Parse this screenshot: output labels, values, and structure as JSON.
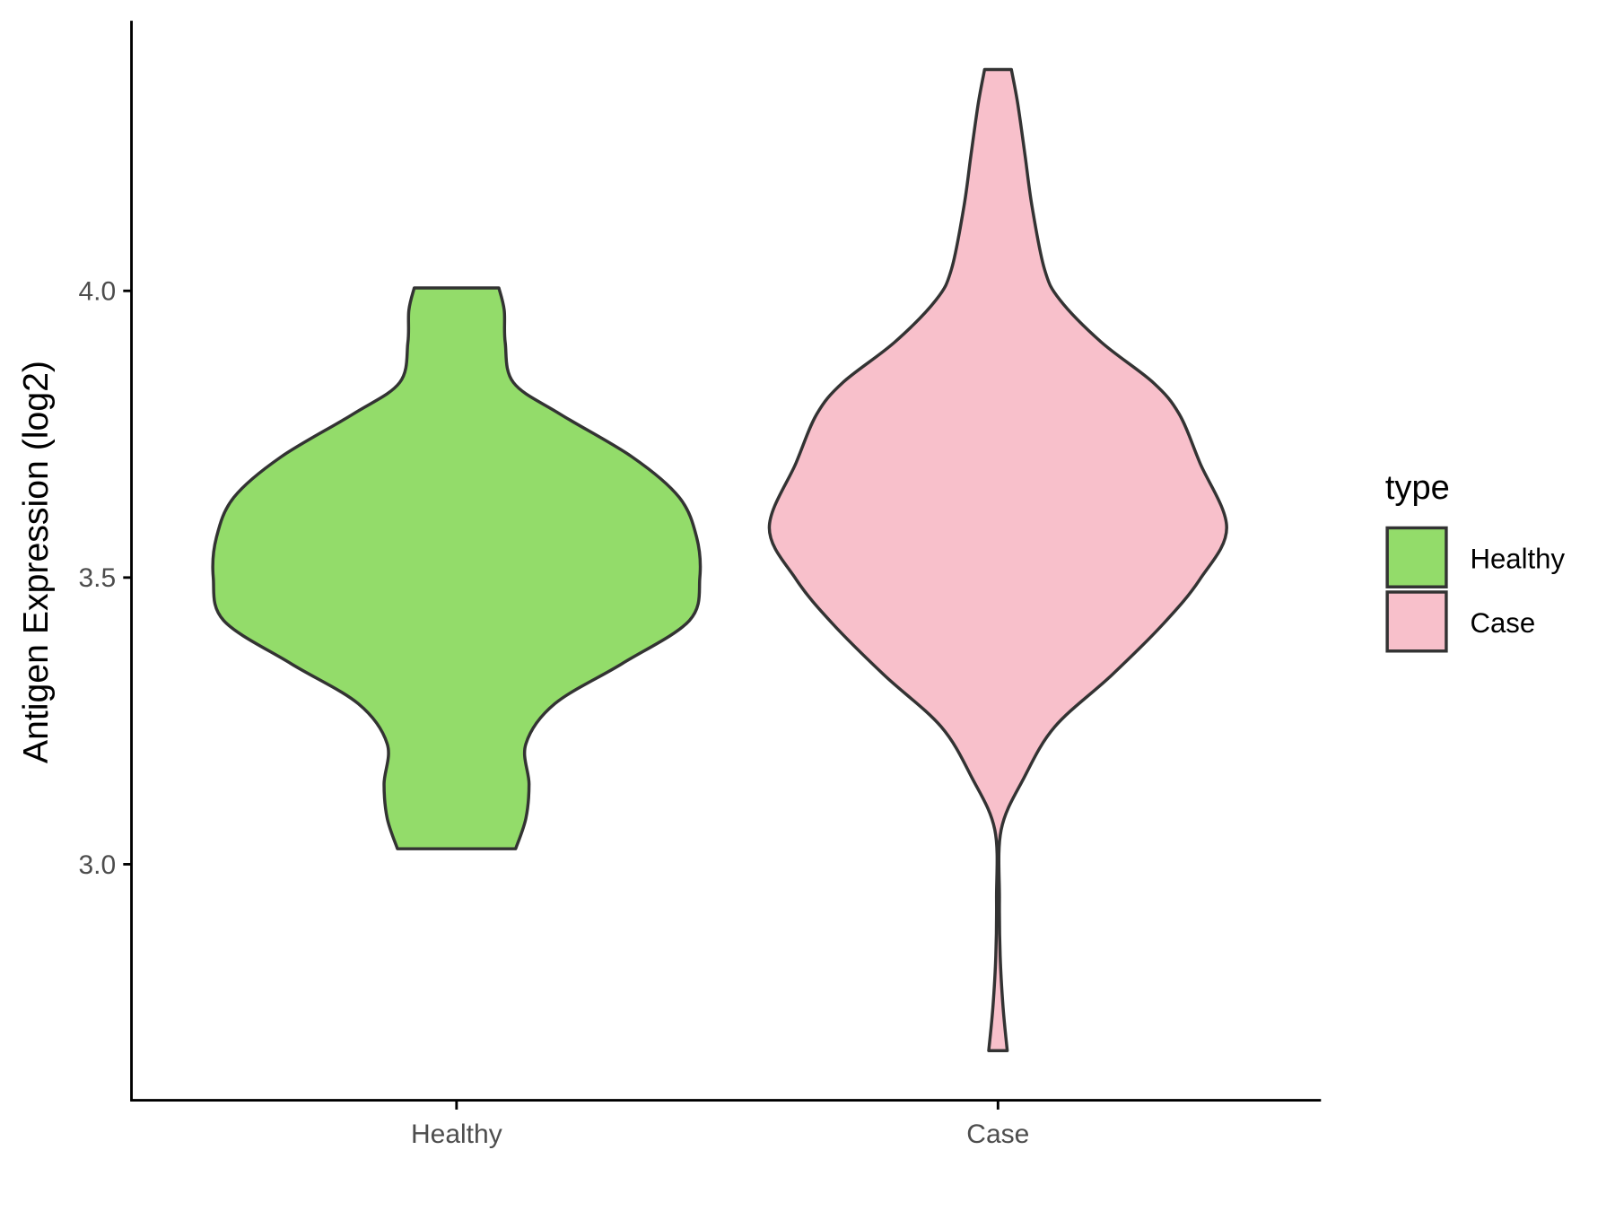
{
  "chart_data": {
    "type": "violin",
    "title": "",
    "xlabel": "",
    "ylabel": "Antigen Expression (log2)",
    "ylim": [
      2.588,
      4.471
    ],
    "yticks": [
      3.0,
      3.5,
      4.0
    ],
    "ytick_labels": [
      "3.0",
      "3.5",
      "4.0"
    ],
    "categories": [
      "Healthy",
      "Case"
    ],
    "grid": false,
    "legend": {
      "title": "type",
      "placement": "right",
      "entries": [
        "Healthy",
        "Case"
      ]
    },
    "series": [
      {
        "name": "Healthy",
        "color": "#93DC6A",
        "range": [
          3.027,
          4.005
        ],
        "density": [
          [
            4.005,
            0.174
          ],
          [
            3.966,
            0.196
          ],
          [
            3.91,
            0.2
          ],
          [
            3.84,
            0.234
          ],
          [
            3.785,
            0.426
          ],
          [
            3.71,
            0.723
          ],
          [
            3.64,
            0.915
          ],
          [
            3.57,
            0.987
          ],
          [
            3.5,
            1.0
          ],
          [
            3.425,
            0.957
          ],
          [
            3.35,
            0.681
          ],
          [
            3.28,
            0.404
          ],
          [
            3.21,
            0.285
          ],
          [
            3.14,
            0.298
          ],
          [
            3.08,
            0.285
          ],
          [
            3.027,
            0.243
          ]
        ]
      },
      {
        "name": "Case",
        "color": "#F8C0CB",
        "range": [
          2.675,
          4.386
        ],
        "density": [
          [
            4.386,
            0.055
          ],
          [
            4.327,
            0.081
          ],
          [
            4.237,
            0.111
          ],
          [
            4.147,
            0.14
          ],
          [
            4.038,
            0.191
          ],
          [
            3.984,
            0.255
          ],
          [
            3.91,
            0.426
          ],
          [
            3.84,
            0.638
          ],
          [
            3.785,
            0.745
          ],
          [
            3.7,
            0.83
          ],
          [
            3.587,
            0.94
          ],
          [
            3.497,
            0.83
          ],
          [
            3.42,
            0.681
          ],
          [
            3.33,
            0.468
          ],
          [
            3.24,
            0.234
          ],
          [
            3.15,
            0.106
          ],
          [
            3.06,
            0.013
          ],
          [
            2.94,
            0.006
          ],
          [
            2.84,
            0.009
          ],
          [
            2.75,
            0.021
          ],
          [
            2.675,
            0.038
          ]
        ]
      }
    ]
  }
}
